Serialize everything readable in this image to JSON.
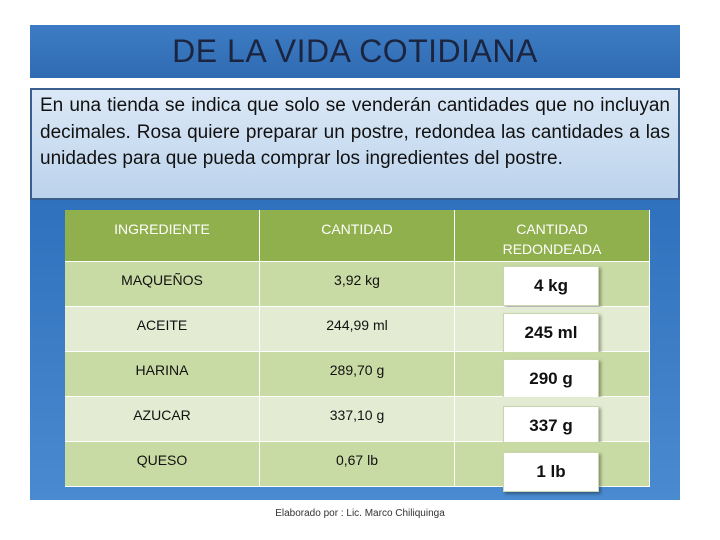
{
  "title": "DE LA VIDA COTIDIANA",
  "paragraph": "En una tienda  se indica que solo se venderán cantidades que no incluyan decimales. Rosa  quiere preparar un postre, redondea  las cantidades a las unidades para que pueda comprar los ingredientes del postre.",
  "table": {
    "headers": [
      "INGREDIENTE",
      "CANTIDAD",
      "CANTIDAD REDONDEADA"
    ],
    "rows": [
      [
        "MAQUEÑOS",
        "3,92 kg",
        "4 kg"
      ],
      [
        "ACEITE",
        "244,99 ml",
        "245 ml"
      ],
      [
        "HARINA",
        "289,70 g",
        "290 g"
      ],
      [
        "AZUCAR",
        "337,10 g",
        "337 g"
      ],
      [
        "QUESO",
        "0,67 lb",
        "1 lb"
      ]
    ]
  },
  "footer": "Elaborado por : Lic. Marco Chiliquinga"
}
